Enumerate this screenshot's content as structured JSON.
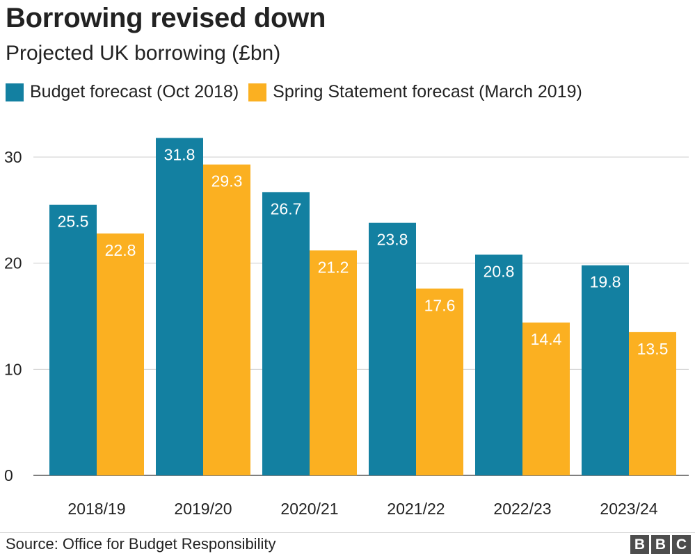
{
  "chart_data": {
    "type": "bar",
    "title": "Borrowing revised down",
    "subtitle": "Projected UK borrowing (£bn)",
    "categories": [
      "2018/19",
      "2019/20",
      "2020/21",
      "2021/22",
      "2022/23",
      "2023/24"
    ],
    "series": [
      {
        "name": "Budget forecast (Oct 2018)",
        "color": "#1380a1",
        "values": [
          25.5,
          31.8,
          26.7,
          23.8,
          20.8,
          19.8
        ]
      },
      {
        "name": "Spring Statement forecast (March 2019)",
        "color": "#fbb021",
        "values": [
          22.8,
          29.3,
          21.2,
          17.6,
          14.4,
          13.5
        ]
      }
    ],
    "y_ticks": [
      "0",
      "10",
      "20",
      "30"
    ],
    "ylim": [
      0,
      30
    ],
    "grid": true,
    "legend_position": "top-left",
    "xlabel": "",
    "ylabel": ""
  },
  "footer": {
    "source": "Source: Office for Budget Responsibility",
    "logo_letters": [
      "B",
      "B",
      "C"
    ]
  }
}
